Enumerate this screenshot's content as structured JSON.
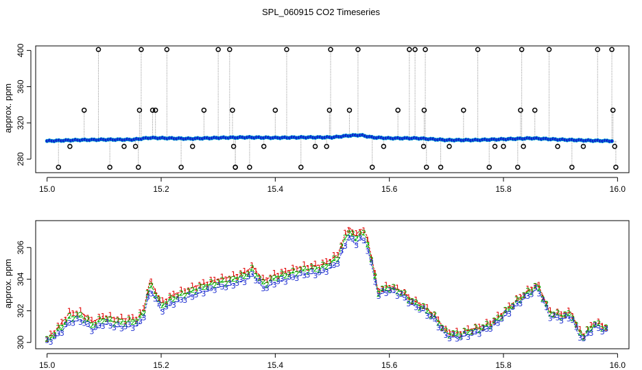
{
  "figure_title": "SPL_060915  CO2 Timeseries",
  "colors": {
    "axis": "#000000",
    "spike_line": "#9a9a9a",
    "outlier": "#000000",
    "series_point": "#1020d0",
    "series_point_edge": "#00a8d0",
    "series_1": "#e00000",
    "series_2": "#00b000",
    "series_3": "#1a2ad0"
  },
  "chart_data": [
    {
      "type": "scatter",
      "title": "SPL_060915  CO2 Timeseries",
      "xlabel": "",
      "ylabel": "approx. ppm",
      "xlim": [
        14.98,
        16.02
      ],
      "ylim": [
        265,
        405
      ],
      "xticks": [
        15.0,
        15.2,
        15.4,
        15.6,
        15.8,
        16.0
      ],
      "xtick_labels": [
        "15.0",
        "15.2",
        "15.4",
        "15.6",
        "15.8",
        "16.0"
      ],
      "yticks": [
        280,
        320,
        360,
        400
      ],
      "ytick_labels": [
        "280",
        "320",
        "360",
        "400"
      ],
      "grid": false,
      "baseline": {
        "x": [
          15.0,
          15.05,
          15.1,
          15.15,
          15.18,
          15.25,
          15.3,
          15.35,
          15.4,
          15.45,
          15.5,
          15.53,
          15.55,
          15.57,
          15.6,
          15.65,
          15.7,
          15.75,
          15.8,
          15.85,
          15.9,
          15.95,
          15.99
        ],
        "y": [
          300,
          301,
          301.5,
          301.5,
          303.5,
          302.5,
          303.5,
          304,
          303.5,
          304,
          304,
          306,
          306.5,
          304,
          303,
          303,
          301,
          301,
          302,
          303,
          301.5,
          300.5,
          300
        ]
      },
      "outliers": {
        "x": [
          15.02,
          15.04,
          15.065,
          15.09,
          15.11,
          15.135,
          15.155,
          15.16,
          15.162,
          15.165,
          15.185,
          15.19,
          15.21,
          15.235,
          15.255,
          15.275,
          15.3,
          15.32,
          15.325,
          15.327,
          15.33,
          15.33,
          15.355,
          15.38,
          15.4,
          15.42,
          15.445,
          15.47,
          15.49,
          15.495,
          15.497,
          15.53,
          15.545,
          15.57,
          15.59,
          15.615,
          15.635,
          15.645,
          15.66,
          15.661,
          15.663,
          15.665,
          15.69,
          15.705,
          15.73,
          15.755,
          15.775,
          15.785,
          15.8,
          15.825,
          15.83,
          15.832,
          15.835,
          15.855,
          15.88,
          15.895,
          15.92,
          15.94,
          15.965,
          15.99,
          15.992,
          15.995,
          15.997
        ],
        "y": [
          271,
          294,
          334,
          401,
          271,
          294,
          294,
          271,
          334,
          401,
          334,
          334,
          401,
          271,
          294,
          334,
          401,
          401,
          334,
          294,
          271,
          271,
          271,
          294,
          334,
          401,
          271,
          294,
          294,
          334,
          401,
          334,
          401,
          271,
          294,
          334,
          401,
          401,
          294,
          334,
          401,
          271,
          271,
          294,
          334,
          401,
          271,
          294,
          294,
          271,
          334,
          401,
          294,
          334,
          401,
          294,
          271,
          294,
          401,
          401,
          334,
          294,
          271
        ]
      }
    },
    {
      "type": "line",
      "title": "",
      "xlabel": "",
      "ylabel": "approx. ppm",
      "xlim": [
        14.98,
        16.02
      ],
      "ylim": [
        299.6,
        307.7
      ],
      "xticks": [
        15.0,
        15.2,
        15.4,
        15.6,
        15.8,
        16.0
      ],
      "xtick_labels": [
        "15.0",
        "15.2",
        "15.4",
        "15.6",
        "15.8",
        "16.0"
      ],
      "yticks": [
        300,
        302,
        304,
        306
      ],
      "ytick_labels": [
        "300",
        "302",
        "304",
        "306"
      ],
      "grid": false,
      "point_labels": [
        "1",
        "2",
        "3"
      ],
      "x": [
        15.0,
        15.02,
        15.04,
        15.06,
        15.08,
        15.1,
        15.12,
        15.14,
        15.16,
        15.17,
        15.18,
        15.19,
        15.2,
        15.22,
        15.25,
        15.28,
        15.3,
        15.32,
        15.35,
        15.36,
        15.38,
        15.4,
        15.42,
        15.45,
        15.48,
        15.5,
        15.51,
        15.52,
        15.53,
        15.54,
        15.55,
        15.56,
        15.57,
        15.58,
        15.6,
        15.62,
        15.64,
        15.66,
        15.68,
        15.7,
        15.72,
        15.74,
        15.76,
        15.78,
        15.8,
        15.82,
        15.84,
        15.86,
        15.87,
        15.88,
        15.9,
        15.92,
        15.93,
        15.94,
        15.96,
        15.98
      ],
      "series": [
        {
          "name": "1",
          "values": [
            300.2,
            301.0,
            301.9,
            301.9,
            301.3,
            301.7,
            301.5,
            301.5,
            301.6,
            302.2,
            303.9,
            303.3,
            302.5,
            303.0,
            303.4,
            303.8,
            304.0,
            304.1,
            304.5,
            304.8,
            303.9,
            304.3,
            304.5,
            304.8,
            304.9,
            305.3,
            305.6,
            306.6,
            307.3,
            306.7,
            307.2,
            306.8,
            305.2,
            303.3,
            303.6,
            303.3,
            302.7,
            302.3,
            301.7,
            300.7,
            300.6,
            300.8,
            301.0,
            301.3,
            301.9,
            302.6,
            303.2,
            303.7,
            302.9,
            302.0,
            301.8,
            301.9,
            300.9,
            300.5,
            301.3,
            301.0
          ]
        },
        {
          "name": "2",
          "values": [
            300.1,
            300.8,
            301.6,
            301.7,
            301.1,
            301.5,
            301.3,
            301.3,
            301.4,
            302.0,
            303.7,
            303.1,
            302.3,
            302.8,
            303.2,
            303.6,
            303.8,
            303.9,
            304.3,
            304.6,
            303.7,
            304.1,
            304.3,
            304.6,
            304.7,
            305.1,
            305.4,
            306.4,
            307.1,
            306.5,
            307.0,
            306.6,
            305.0,
            303.2,
            303.5,
            303.2,
            302.6,
            302.2,
            301.6,
            300.6,
            300.5,
            300.7,
            300.9,
            301.2,
            301.8,
            302.5,
            303.1,
            303.6,
            302.8,
            301.9,
            301.7,
            301.8,
            300.8,
            300.4,
            301.2,
            300.9
          ]
        },
        {
          "name": "3",
          "values": [
            300.0,
            300.5,
            301.3,
            301.4,
            300.8,
            301.2,
            301.0,
            301.0,
            301.1,
            301.7,
            303.3,
            302.8,
            302.0,
            302.5,
            302.9,
            303.3,
            303.5,
            303.6,
            304.0,
            304.3,
            303.4,
            303.8,
            304.0,
            304.3,
            304.4,
            304.8,
            305.1,
            306.0,
            306.7,
            306.2,
            306.6,
            306.2,
            304.7,
            303.0,
            303.3,
            303.0,
            302.4,
            302.0,
            301.4,
            300.4,
            300.3,
            300.5,
            300.7,
            301.0,
            301.6,
            302.3,
            302.9,
            303.4,
            302.6,
            301.7,
            301.5,
            301.6,
            300.6,
            300.2,
            301.0,
            300.7
          ]
        }
      ]
    }
  ]
}
